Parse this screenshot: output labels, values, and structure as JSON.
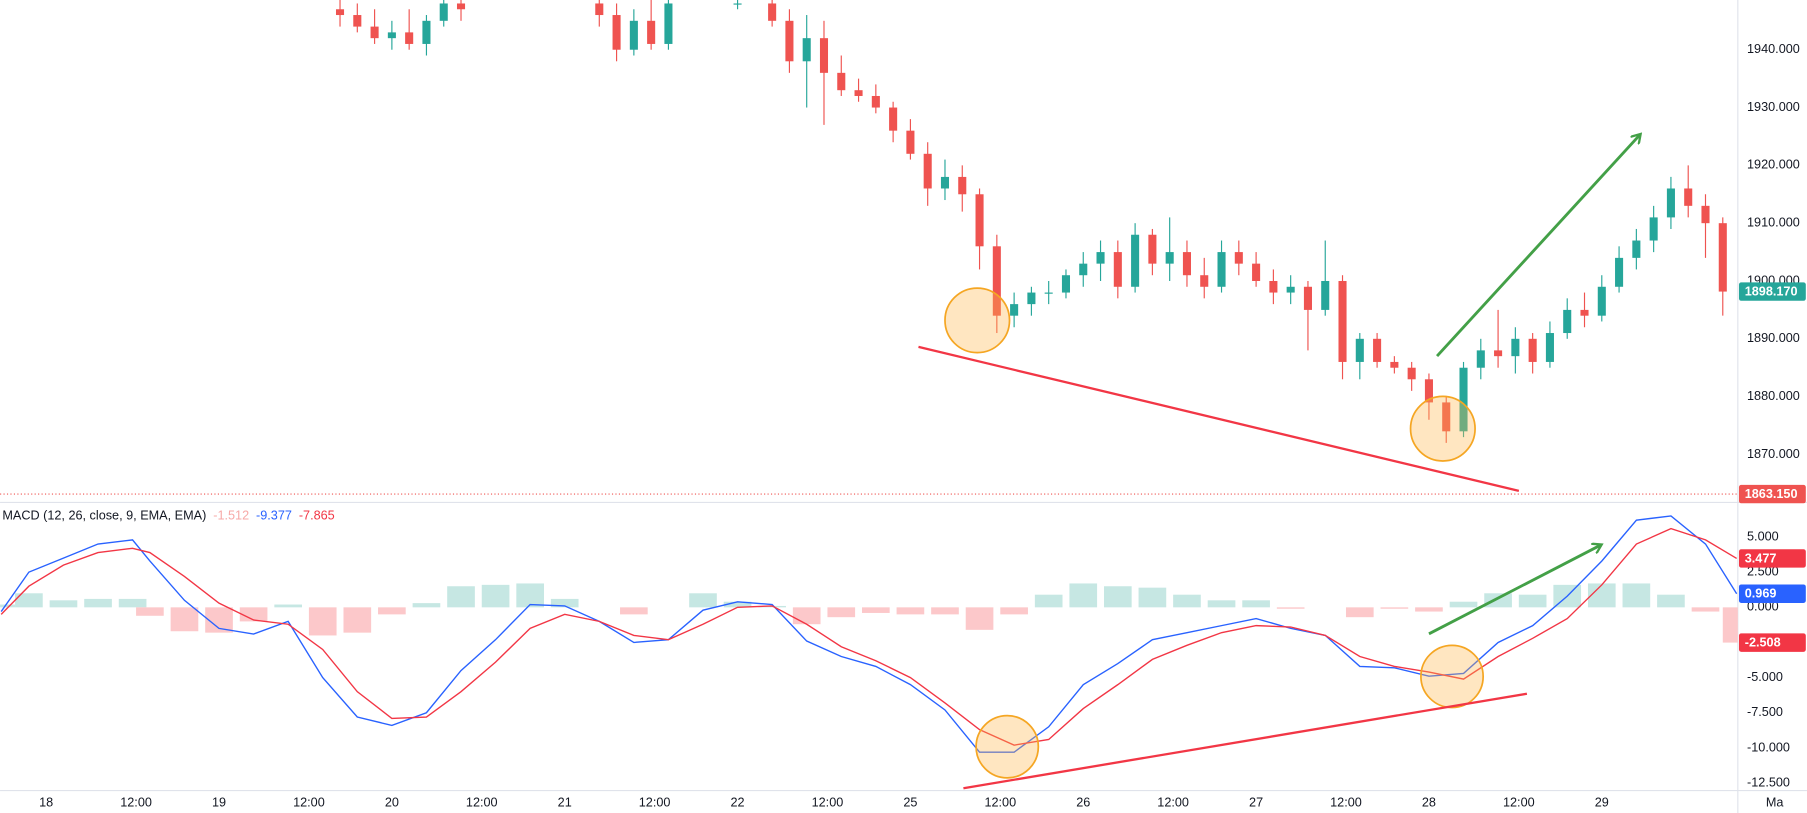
{
  "chart_data": [
    {
      "type": "candlestick",
      "x": [
        1.7,
        1.8,
        1.9,
        2.0,
        2.1,
        2.2,
        2.3,
        2.4,
        3.2,
        3.3,
        3.4,
        3.5,
        3.6,
        4.0,
        4.2,
        4.3,
        4.4,
        4.5,
        4.6,
        4.7,
        4.8,
        4.9,
        5.0,
        5.1,
        5.2,
        5.3,
        5.4,
        5.5,
        5.6,
        5.7,
        5.8,
        5.9,
        6.0,
        6.1,
        6.2,
        6.3,
        6.4,
        6.5,
        6.6,
        6.7,
        6.8,
        6.9,
        7.0,
        7.1,
        7.2,
        7.3,
        7.4,
        7.5,
        7.6,
        7.7,
        7.8,
        7.9,
        8.0,
        8.1,
        8.2,
        8.3,
        8.4,
        8.5,
        8.6,
        8.7,
        8.8,
        8.9,
        9.0,
        9.1,
        9.2,
        9.3,
        9.4,
        9.5,
        9.6,
        9.7
      ],
      "open": [
        1947,
        1946,
        1944,
        1942,
        1943,
        1941,
        1945,
        1948,
        1948,
        1946,
        1940,
        1945,
        1941,
        1948,
        1948,
        1945,
        1938,
        1942,
        1936,
        1933,
        1932,
        1930,
        1926,
        1922,
        1916,
        1918,
        1915,
        1906,
        1894,
        1896,
        1898,
        1898,
        1901,
        1903,
        1905,
        1899,
        1908,
        1903,
        1905,
        1901,
        1899,
        1905,
        1903,
        1900,
        1898,
        1899,
        1895,
        1900,
        1886,
        1890,
        1886,
        1885,
        1883,
        1879,
        1874,
        1885,
        1888,
        1887,
        1890,
        1886,
        1891,
        1895,
        1894,
        1899,
        1904,
        1907,
        1911,
        1916,
        1913,
        1910
      ],
      "high": [
        1949,
        1948,
        1947,
        1945,
        1947,
        1946,
        1949,
        1949,
        1949,
        1948,
        1947,
        1949,
        1949,
        1949,
        1949,
        1947,
        1946,
        1945,
        1939,
        1935,
        1934,
        1931,
        1928,
        1924,
        1921,
        1920,
        1916,
        1908,
        1898,
        1899,
        1900,
        1902,
        1905,
        1907,
        1907,
        1910,
        1909,
        1911,
        1907,
        1904,
        1907,
        1907,
        1905,
        1902,
        1901,
        1900,
        1907,
        1901,
        1891,
        1891,
        1887,
        1886,
        1884,
        1880,
        1886,
        1890,
        1895,
        1892,
        1891,
        1893,
        1897,
        1898,
        1901,
        1906,
        1909,
        1913,
        1918,
        1920,
        1915,
        1911
      ],
      "low": [
        1944,
        1943,
        1941,
        1940,
        1940,
        1939,
        1944,
        1945,
        1944,
        1938,
        1939,
        1940,
        1940,
        1947,
        1944,
        1936,
        1930,
        1927,
        1932,
        1931,
        1929,
        1924,
        1921,
        1913,
        1914,
        1912,
        1902,
        1891,
        1892,
        1894,
        1896,
        1897,
        1899,
        1900,
        1897,
        1898,
        1901,
        1900,
        1899,
        1897,
        1898,
        1901,
        1899,
        1896,
        1896,
        1888,
        1894,
        1883,
        1883,
        1885,
        1884,
        1881,
        1876,
        1872,
        1873,
        1883,
        1885,
        1884,
        1884,
        1885,
        1890,
        1892,
        1893,
        1898,
        1902,
        1905,
        1909,
        1911,
        1904,
        1894
      ],
      "close": [
        1946,
        1944,
        1942,
        1943,
        1941,
        1945,
        1948,
        1947,
        1946,
        1940,
        1945,
        1941,
        1948,
        1948,
        1945,
        1938,
        1942,
        1936,
        1933,
        1932,
        1930,
        1926,
        1922,
        1916,
        1918,
        1915,
        1906,
        1894,
        1896,
        1898,
        1898,
        1901,
        1903,
        1905,
        1899,
        1908,
        1903,
        1905,
        1901,
        1899,
        1905,
        1903,
        1900,
        1898,
        1899,
        1895,
        1900,
        1886,
        1890,
        1886,
        1885,
        1883,
        1879,
        1874,
        1885,
        1888,
        1887,
        1890,
        1886,
        1891,
        1895,
        1894,
        1899,
        1904,
        1907,
        1911,
        1916,
        1913,
        1910,
        1898.17
      ],
      "up_color": "#26a69a",
      "down_color": "#ef5350",
      "xlim": [
        -0.267,
        9.787
      ],
      "ylim": [
        1861.9,
        1948.6
      ],
      "yticks": [
        {
          "value": 1870,
          "label": "1870.000"
        },
        {
          "value": 1880,
          "label": "1880.000"
        },
        {
          "value": 1890,
          "label": "1890.000"
        },
        {
          "value": 1900,
          "label": "1900.000"
        },
        {
          "value": 1910,
          "label": "1910.000"
        },
        {
          "value": 1920,
          "label": "1920.000"
        },
        {
          "value": 1930,
          "label": "1930.000"
        },
        {
          "value": 1940,
          "label": "1940.000"
        }
      ],
      "price_labels": [
        {
          "value": 1898.17,
          "label": "1898.170",
          "color": "#26a69a"
        },
        {
          "value": 1863.15,
          "label": "1863.150",
          "color": "#ef5350"
        }
      ]
    },
    {
      "type": "line",
      "title": "MACD (12, 26, close, 9, EMA, EMA)",
      "legend_values": [
        {
          "value": -1.512,
          "color": "#f7a9a7"
        },
        {
          "value": -9.377,
          "color": "#2962ff"
        },
        {
          "value": -7.865,
          "color": "#f23645"
        }
      ],
      "x": [
        -0.26,
        -0.1,
        0.1,
        0.3,
        0.5,
        0.6,
        0.8,
        1.0,
        1.2,
        1.4,
        1.6,
        1.8,
        2.0,
        2.2,
        2.4,
        2.6,
        2.8,
        3.0,
        3.2,
        3.4,
        3.6,
        3.8,
        4.0,
        4.2,
        4.4,
        4.6,
        4.8,
        5.0,
        5.2,
        5.4,
        5.6,
        5.8,
        6.0,
        6.2,
        6.4,
        6.6,
        6.8,
        7.0,
        7.2,
        7.4,
        7.6,
        7.8,
        8.0,
        8.2,
        8.4,
        8.6,
        8.8,
        9.0,
        9.2,
        9.4,
        9.6,
        9.78
      ],
      "series": [
        {
          "color": "#2962ff",
          "values": [
            -0.3,
            2.5,
            3.5,
            4.5,
            4.8,
            3.3,
            0.5,
            -1.5,
            -1.9,
            -1.0,
            -5.0,
            -7.8,
            -8.4,
            -7.5,
            -4.5,
            -2.3,
            0.2,
            0.1,
            -1.0,
            -2.5,
            -2.3,
            -0.2,
            0.4,
            0.2,
            -2.4,
            -3.5,
            -4.2,
            -5.5,
            -7.3,
            -10.3,
            -10.3,
            -8.5,
            -5.5,
            -4.0,
            -2.3,
            -1.8,
            -1.3,
            -0.8,
            -1.5,
            -2.0,
            -4.2,
            -4.3,
            -4.9,
            -4.7,
            -2.5,
            -1.3,
            0.8,
            3.3,
            6.2,
            6.5,
            4.5,
            0.969
          ]
        },
        {
          "color": "#f23645",
          "values": [
            -0.5,
            1.5,
            3.0,
            3.9,
            4.2,
            3.9,
            2.2,
            0.3,
            -0.9,
            -1.2,
            -3.0,
            -6.0,
            -7.9,
            -7.8,
            -6.0,
            -3.9,
            -1.5,
            -0.5,
            -1.0,
            -2.0,
            -2.3,
            -1.2,
            0.0,
            0.1,
            -1.2,
            -2.8,
            -3.8,
            -5.0,
            -6.8,
            -8.7,
            -9.8,
            -9.4,
            -7.2,
            -5.5,
            -3.7,
            -2.7,
            -1.8,
            -1.3,
            -1.4,
            -2.0,
            -3.5,
            -4.2,
            -4.6,
            -5.1,
            -3.5,
            -2.2,
            -0.8,
            1.6,
            4.5,
            5.6,
            4.8,
            3.477
          ]
        }
      ],
      "histogram": {
        "up_color": "#c6e7e3",
        "down_color": "#fcc8ca",
        "values": [
          0.2,
          1.0,
          0.5,
          0.6,
          0.6,
          -0.6,
          -1.7,
          -1.8,
          -1.0,
          0.2,
          -2.0,
          -1.8,
          -0.5,
          0.3,
          1.5,
          1.6,
          1.7,
          0.6,
          0,
          -0.5,
          0,
          1.0,
          0.4,
          0.1,
          -1.2,
          -0.7,
          -0.4,
          -0.5,
          -0.5,
          -1.6,
          -0.5,
          0.9,
          1.7,
          1.5,
          1.4,
          0.9,
          0.5,
          0.5,
          -0.1,
          0,
          -0.7,
          -0.1,
          -0.3,
          0.4,
          1.0,
          0.9,
          1.6,
          1.7,
          1.7,
          0.9,
          -0.3,
          -2.508
        ]
      },
      "xlim": [
        -0.267,
        9.787
      ],
      "ylim": [
        -13.03,
        7.38
      ],
      "yticks": [
        {
          "value": 5,
          "label": "5.000"
        },
        {
          "value": 2.5,
          "label": "2.500"
        },
        {
          "value": 0,
          "label": "0.000"
        },
        {
          "value": -2.5,
          "label": "-2.500"
        },
        {
          "value": -5,
          "label": "-5.000"
        },
        {
          "value": -7.5,
          "label": "-7.500"
        },
        {
          "value": -10,
          "label": "-10.000"
        },
        {
          "value": -12.5,
          "label": "-12.500"
        }
      ],
      "axis_labels": [
        {
          "value": 3.477,
          "color": "#f23645"
        },
        {
          "value": 0.969,
          "color": "#2962ff"
        },
        {
          "value": -2.508,
          "color": "#f23645"
        }
      ],
      "xticks": [
        {
          "value": 0,
          "label": "18"
        },
        {
          "value": 0.52,
          "label": "12:00"
        },
        {
          "value": 1,
          "label": "19"
        },
        {
          "value": 1.52,
          "label": "12:00"
        },
        {
          "value": 2,
          "label": "20"
        },
        {
          "value": 2.52,
          "label": "12:00"
        },
        {
          "value": 3,
          "label": "21"
        },
        {
          "value": 3.52,
          "label": "12:00"
        },
        {
          "value": 4,
          "label": "22"
        },
        {
          "value": 4.52,
          "label": "12:00"
        },
        {
          "value": 5,
          "label": "25"
        },
        {
          "value": 5.52,
          "label": "12:00"
        },
        {
          "value": 6,
          "label": "26"
        },
        {
          "value": 6.52,
          "label": "12:00"
        },
        {
          "value": 7,
          "label": "27"
        },
        {
          "value": 7.52,
          "label": "12:00"
        },
        {
          "value": 8,
          "label": "28"
        },
        {
          "value": 8.52,
          "label": "12:00"
        },
        {
          "value": 9,
          "label": "29"
        },
        {
          "value": 10,
          "label": "Ma"
        }
      ]
    }
  ]
}
